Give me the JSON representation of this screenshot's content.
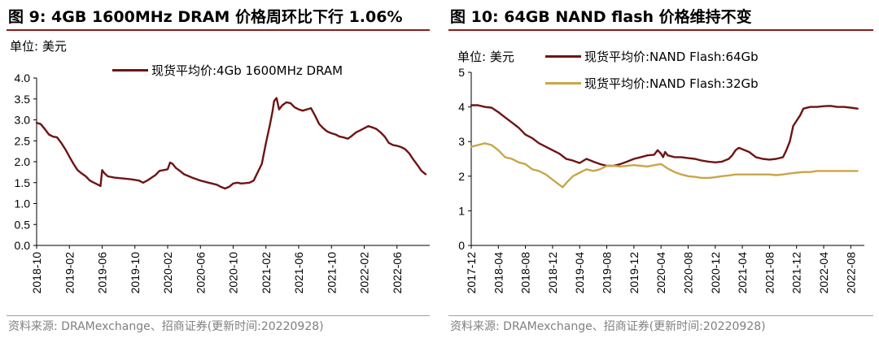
{
  "colors": {
    "accent": "#b85a3d",
    "series_dark": "#6e1414",
    "series_gold": "#c9a64a",
    "rule": "#8b1a1a",
    "source_text": "#808080"
  },
  "fig9": {
    "title": "图 9:  4GB 1600MHz DRAM 价格周环比下行 1.06%",
    "unit": "单位:  美元",
    "source": "资料来源:  DRAMexchange、招商证券(更新时间:20220928)"
  },
  "fig10": {
    "title": "图 10:  64GB NAND flash 价格维持不变",
    "unit": "单位:  美元",
    "source": "资料来源:  DRAMexchange、招商证券(更新时间:20220928)"
  },
  "chart_data": [
    {
      "type": "line",
      "title": "图 9:  4GB 1600MHz DRAM 价格周环比下行 1.06%",
      "ylabel": "单位:  美元",
      "ylim": [
        0,
        4
      ],
      "yticks": [
        "4.0",
        "3.5",
        "3.0",
        "2.5",
        "2.0",
        "1.5",
        "1.0",
        "0.5",
        "0.0"
      ],
      "x_range": [
        0,
        48
      ],
      "x_ticks": [
        {
          "label": "2018-10",
          "x": 0
        },
        {
          "label": "2019-02",
          "x": 4
        },
        {
          "label": "2019-06",
          "x": 8
        },
        {
          "label": "2019-10",
          "x": 12
        },
        {
          "label": "2020-02",
          "x": 16
        },
        {
          "label": "2020-06",
          "x": 20
        },
        {
          "label": "2020-10",
          "x": 24
        },
        {
          "label": "2021-02",
          "x": 28
        },
        {
          "label": "2021-06",
          "x": 32
        },
        {
          "label": "2021-10",
          "x": 36
        },
        {
          "label": "2022-02",
          "x": 40
        },
        {
          "label": "2022-06",
          "x": 44
        }
      ],
      "series": [
        {
          "name": "现货平均价:4Gb 1600MHz DRAM",
          "color": "#6e1414",
          "points": [
            [
              0,
              2.93
            ],
            [
              0.5,
              2.9
            ],
            [
              1,
              2.78
            ],
            [
              1.5,
              2.65
            ],
            [
              2,
              2.6
            ],
            [
              2.5,
              2.58
            ],
            [
              3,
              2.45
            ],
            [
              3.5,
              2.3
            ],
            [
              4,
              2.12
            ],
            [
              4.5,
              1.95
            ],
            [
              5,
              1.8
            ],
            [
              5.5,
              1.72
            ],
            [
              6,
              1.65
            ],
            [
              6.5,
              1.55
            ],
            [
              7,
              1.5
            ],
            [
              7.5,
              1.45
            ],
            [
              7.8,
              1.42
            ],
            [
              8,
              1.8
            ],
            [
              8.3,
              1.72
            ],
            [
              8.7,
              1.65
            ],
            [
              9.5,
              1.62
            ],
            [
              10.5,
              1.6
            ],
            [
              11.5,
              1.58
            ],
            [
              12.5,
              1.55
            ],
            [
              13,
              1.5
            ],
            [
              13.5,
              1.55
            ],
            [
              14.5,
              1.68
            ],
            [
              15,
              1.78
            ],
            [
              15.5,
              1.8
            ],
            [
              16,
              1.82
            ],
            [
              16.3,
              1.98
            ],
            [
              16.6,
              1.95
            ],
            [
              17,
              1.85
            ],
            [
              17.5,
              1.78
            ],
            [
              18,
              1.7
            ],
            [
              19,
              1.62
            ],
            [
              20,
              1.55
            ],
            [
              21,
              1.5
            ],
            [
              22,
              1.45
            ],
            [
              22.5,
              1.4
            ],
            [
              23,
              1.36
            ],
            [
              23.5,
              1.4
            ],
            [
              24,
              1.48
            ],
            [
              24.5,
              1.5
            ],
            [
              25,
              1.48
            ],
            [
              26,
              1.5
            ],
            [
              26.5,
              1.55
            ],
            [
              27,
              1.75
            ],
            [
              27.5,
              1.95
            ],
            [
              28,
              2.45
            ],
            [
              28.5,
              2.9
            ],
            [
              28.8,
              3.2
            ],
            [
              29,
              3.45
            ],
            [
              29.3,
              3.52
            ],
            [
              29.6,
              3.25
            ],
            [
              30,
              3.35
            ],
            [
              30.5,
              3.42
            ],
            [
              31,
              3.4
            ],
            [
              31.5,
              3.3
            ],
            [
              32,
              3.25
            ],
            [
              32.5,
              3.22
            ],
            [
              33,
              3.25
            ],
            [
              33.5,
              3.28
            ],
            [
              34,
              3.1
            ],
            [
              34.5,
              2.9
            ],
            [
              35,
              2.8
            ],
            [
              35.5,
              2.72
            ],
            [
              36,
              2.68
            ],
            [
              36.5,
              2.65
            ],
            [
              37,
              2.6
            ],
            [
              37.5,
              2.58
            ],
            [
              38,
              2.55
            ],
            [
              38.5,
              2.62
            ],
            [
              39,
              2.7
            ],
            [
              39.5,
              2.75
            ],
            [
              40,
              2.8
            ],
            [
              40.5,
              2.85
            ],
            [
              41,
              2.82
            ],
            [
              41.5,
              2.78
            ],
            [
              42,
              2.7
            ],
            [
              42.5,
              2.6
            ],
            [
              43,
              2.45
            ],
            [
              43.5,
              2.4
            ],
            [
              44,
              2.38
            ],
            [
              44.5,
              2.35
            ],
            [
              45,
              2.3
            ],
            [
              45.5,
              2.2
            ],
            [
              46,
              2.05
            ],
            [
              46.5,
              1.92
            ],
            [
              47,
              1.78
            ],
            [
              47.5,
              1.7
            ]
          ]
        }
      ]
    },
    {
      "type": "line",
      "title": "图 10:  64GB NAND flash 价格维持不变",
      "ylabel": "单位:  美元",
      "ylim": [
        0,
        5
      ],
      "yticks": [
        "5",
        "4",
        "3",
        "2",
        "1",
        "0"
      ],
      "x_range": [
        0,
        58
      ],
      "x_ticks": [
        {
          "label": "2017-12",
          "x": 0
        },
        {
          "label": "2018-04",
          "x": 4
        },
        {
          "label": "2018-08",
          "x": 8
        },
        {
          "label": "2018-12",
          "x": 12
        },
        {
          "label": "2019-04",
          "x": 16
        },
        {
          "label": "2019-08",
          "x": 20
        },
        {
          "label": "2019-12",
          "x": 24
        },
        {
          "label": "2020-04",
          "x": 28
        },
        {
          "label": "2020-08",
          "x": 32
        },
        {
          "label": "2020-12",
          "x": 36
        },
        {
          "label": "2021-04",
          "x": 40
        },
        {
          "label": "2021-08",
          "x": 44
        },
        {
          "label": "2021-12",
          "x": 48
        },
        {
          "label": "2022-04",
          "x": 52
        },
        {
          "label": "2022-08",
          "x": 56
        }
      ],
      "series": [
        {
          "name": "现货平均价:NAND Flash:64Gb",
          "color": "#6e1414",
          "points": [
            [
              0,
              4.05
            ],
            [
              1,
              4.05
            ],
            [
              2,
              4.0
            ],
            [
              3,
              3.98
            ],
            [
              4,
              3.85
            ],
            [
              5,
              3.7
            ],
            [
              6,
              3.55
            ],
            [
              7,
              3.4
            ],
            [
              8,
              3.2
            ],
            [
              9,
              3.1
            ],
            [
              10,
              2.95
            ],
            [
              11,
              2.85
            ],
            [
              12,
              2.75
            ],
            [
              13,
              2.65
            ],
            [
              14,
              2.5
            ],
            [
              15,
              2.45
            ],
            [
              16,
              2.38
            ],
            [
              17,
              2.5
            ],
            [
              18,
              2.42
            ],
            [
              19,
              2.35
            ],
            [
              20,
              2.3
            ],
            [
              21,
              2.3
            ],
            [
              22,
              2.35
            ],
            [
              23,
              2.42
            ],
            [
              24,
              2.5
            ],
            [
              25,
              2.55
            ],
            [
              26,
              2.6
            ],
            [
              27,
              2.62
            ],
            [
              27.5,
              2.75
            ],
            [
              28,
              2.65
            ],
            [
              28.3,
              2.55
            ],
            [
              28.6,
              2.7
            ],
            [
              29,
              2.6
            ],
            [
              30,
              2.55
            ],
            [
              31,
              2.55
            ],
            [
              32,
              2.52
            ],
            [
              33,
              2.5
            ],
            [
              34,
              2.45
            ],
            [
              35,
              2.42
            ],
            [
              36,
              2.4
            ],
            [
              37,
              2.42
            ],
            [
              38,
              2.5
            ],
            [
              38.5,
              2.6
            ],
            [
              39,
              2.75
            ],
            [
              39.5,
              2.82
            ],
            [
              40,
              2.78
            ],
            [
              41,
              2.7
            ],
            [
              42,
              2.55
            ],
            [
              43,
              2.5
            ],
            [
              44,
              2.48
            ],
            [
              45,
              2.5
            ],
            [
              46,
              2.55
            ],
            [
              46.5,
              2.75
            ],
            [
              47,
              3.0
            ],
            [
              47.5,
              3.45
            ],
            [
              48,
              3.6
            ],
            [
              48.5,
              3.75
            ],
            [
              49,
              3.95
            ],
            [
              50,
              4.0
            ],
            [
              51,
              4.0
            ],
            [
              52,
              4.02
            ],
            [
              53,
              4.03
            ],
            [
              54,
              4.0
            ],
            [
              55,
              4.0
            ],
            [
              56,
              3.98
            ],
            [
              57,
              3.95
            ]
          ]
        },
        {
          "name": "现货平均价:NAND Flash:32Gb",
          "color": "#c9a64a",
          "points": [
            [
              0,
              2.85
            ],
            [
              1,
              2.9
            ],
            [
              2,
              2.95
            ],
            [
              3,
              2.9
            ],
            [
              4,
              2.75
            ],
            [
              5,
              2.55
            ],
            [
              6,
              2.5
            ],
            [
              7,
              2.4
            ],
            [
              8,
              2.35
            ],
            [
              9,
              2.2
            ],
            [
              10,
              2.15
            ],
            [
              11,
              2.05
            ],
            [
              12,
              1.9
            ],
            [
              13,
              1.75
            ],
            [
              13.5,
              1.68
            ],
            [
              14,
              1.8
            ],
            [
              15,
              2.0
            ],
            [
              16,
              2.1
            ],
            [
              17,
              2.2
            ],
            [
              18,
              2.15
            ],
            [
              19,
              2.2
            ],
            [
              20,
              2.3
            ],
            [
              21,
              2.3
            ],
            [
              22,
              2.28
            ],
            [
              23,
              2.3
            ],
            [
              24,
              2.32
            ],
            [
              25,
              2.3
            ],
            [
              26,
              2.28
            ],
            [
              27,
              2.32
            ],
            [
              28,
              2.35
            ],
            [
              29,
              2.22
            ],
            [
              30,
              2.12
            ],
            [
              31,
              2.05
            ],
            [
              32,
              2.0
            ],
            [
              33,
              1.98
            ],
            [
              34,
              1.95
            ],
            [
              35,
              1.95
            ],
            [
              36,
              1.97
            ],
            [
              37,
              2.0
            ],
            [
              38,
              2.02
            ],
            [
              39,
              2.05
            ],
            [
              40,
              2.05
            ],
            [
              41,
              2.05
            ],
            [
              42,
              2.05
            ],
            [
              43,
              2.05
            ],
            [
              44,
              2.05
            ],
            [
              45,
              2.03
            ],
            [
              46,
              2.05
            ],
            [
              47,
              2.08
            ],
            [
              48,
              2.1
            ],
            [
              49,
              2.12
            ],
            [
              50,
              2.12
            ],
            [
              51,
              2.15
            ],
            [
              52,
              2.15
            ],
            [
              53,
              2.15
            ],
            [
              54,
              2.15
            ],
            [
              55,
              2.15
            ],
            [
              56,
              2.15
            ],
            [
              57,
              2.15
            ]
          ]
        }
      ]
    }
  ]
}
